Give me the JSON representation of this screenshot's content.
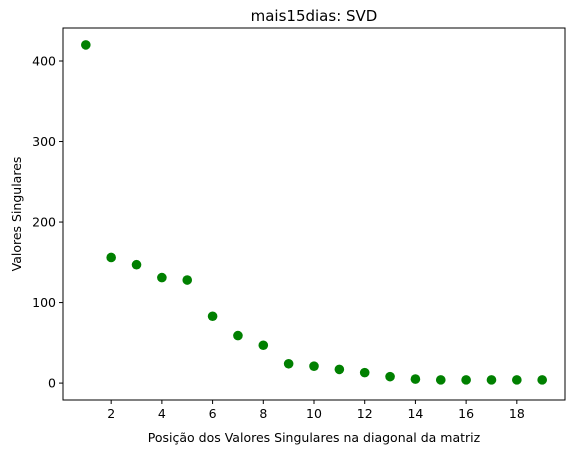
{
  "chart_data": {
    "type": "scatter",
    "title": "mais15dias: SVD",
    "xlabel": "Posição dos Valores Singulares na diagonal da matriz",
    "ylabel": "Valores Singulares",
    "xlim": [
      0.1,
      19.9
    ],
    "ylim": [
      -21,
      441
    ],
    "x_ticks": [
      2,
      4,
      6,
      8,
      10,
      12,
      14,
      16,
      18
    ],
    "y_ticks": [
      0,
      100,
      200,
      300,
      400
    ],
    "grid": false,
    "marker_color": "#008000",
    "series": [
      {
        "x": [
          1,
          2,
          3,
          4,
          5,
          6,
          7,
          8,
          9,
          10,
          11,
          12,
          13,
          14,
          15,
          16,
          17,
          18,
          19
        ],
        "y": [
          420,
          156,
          147,
          131,
          128,
          83,
          59,
          47,
          24,
          21,
          17,
          13,
          8,
          5,
          4,
          4,
          4,
          4,
          4
        ]
      }
    ]
  }
}
